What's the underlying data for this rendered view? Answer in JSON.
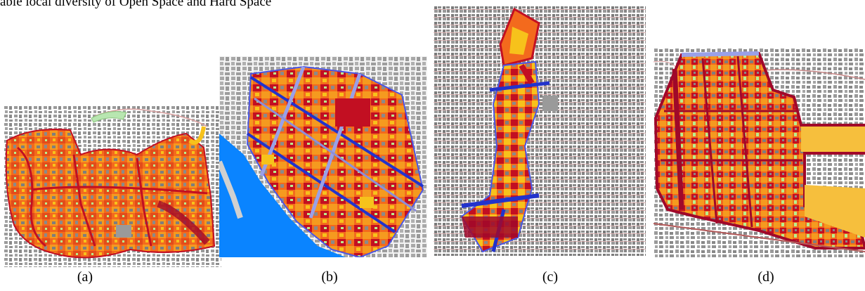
{
  "caption": {
    "top_text": "able local diversity of Open Space and Hard Space"
  },
  "panels": [
    {
      "id": "a",
      "label": "(a)"
    },
    {
      "id": "b",
      "label": "(b)"
    },
    {
      "id": "c",
      "label": "(c)"
    },
    {
      "id": "d",
      "label": "(d)"
    }
  ],
  "colors": {
    "building": "#8c8c8c",
    "street_line": "#b55a5a",
    "high": "#c20f22",
    "mid": "#f36a1d",
    "low": "#f7c21b",
    "lowest": "#b9f08c",
    "road_blue": "#2233cc",
    "water": "#0a84ff",
    "park": "#b8e6b0"
  }
}
